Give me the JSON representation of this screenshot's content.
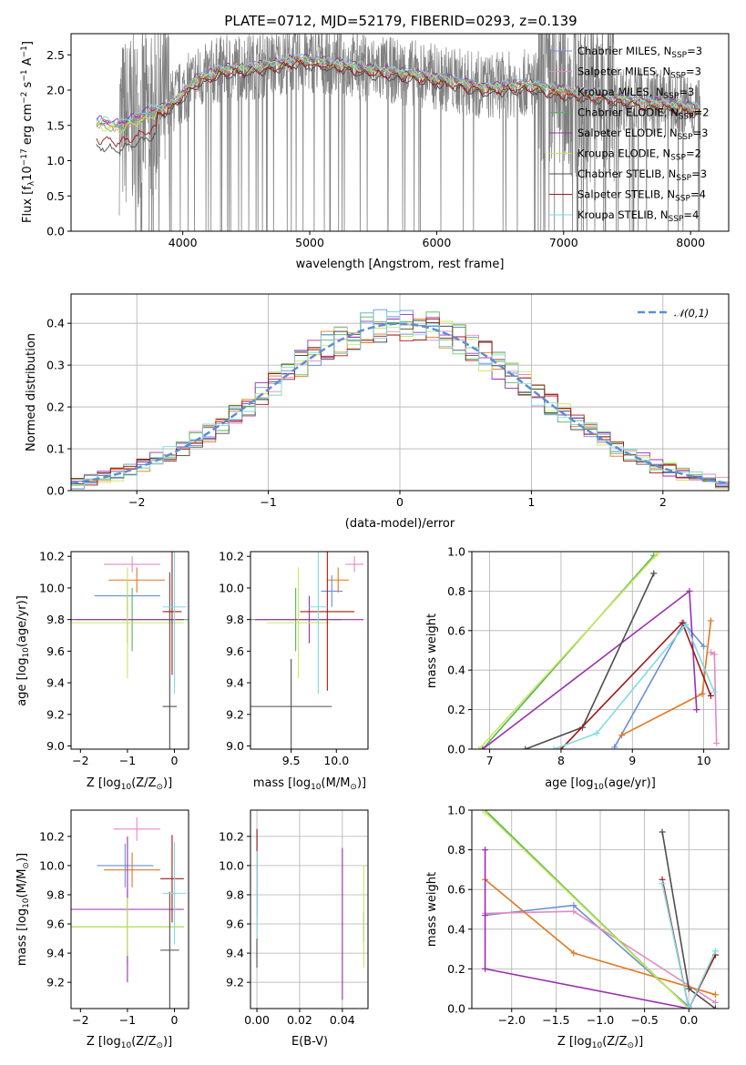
{
  "figure_title": "PLATE=0712, MJD=52179, FIBERID=0293, z=0.139",
  "colors": [
    "#6a8fd8",
    "#e48ac2",
    "#e07820",
    "#56b356",
    "#9b2fae",
    "#c5e85a",
    "#4d4d4d",
    "#a01818",
    "#7fdbe0"
  ],
  "chart_data": [
    {
      "name": "spectrum",
      "type": "line",
      "xlabel": "wavelength [Angstrom, rest frame]",
      "ylabel": "Flux [f_λ10^-17 erg cm^-2 s^-1 A^-1]",
      "xlim": [
        3120,
        8300
      ],
      "ylim": [
        0,
        2.8
      ],
      "xticks": [
        4000,
        5000,
        6000,
        7000,
        8000
      ],
      "yticks": [
        0.0,
        0.5,
        1.0,
        1.5,
        2.0,
        2.5
      ],
      "legend_position": "upper-right",
      "legend": [
        "Chabrier MILES, N_SSP=3",
        "Salpeter MILES, N_SSP=3",
        "Kroupa MILES, N_SSP=3",
        "Chabrier ELODIE, N_SSP=2",
        "Salpeter ELODIE, N_SSP=3",
        "Kroupa ELODIE, N_SSP=2",
        "Chabrier STELIB, N_SSP=3",
        "Salpeter STELIB, N_SSP=4",
        "Kroupa STELIB, N_SSP=4"
      ],
      "continuum_x": [
        3320,
        3500,
        3700,
        3900,
        4100,
        4300,
        4600,
        4900,
        5200,
        5500,
        5800,
        6100,
        6400,
        6700,
        7000,
        7300,
        7600,
        7900,
        8080
      ],
      "continuum_y": [
        1.55,
        1.5,
        1.65,
        1.8,
        2.15,
        2.3,
        2.35,
        2.45,
        2.4,
        2.3,
        2.25,
        2.15,
        2.05,
        2.1,
        2.0,
        1.95,
        1.85,
        1.8,
        1.75
      ]
    },
    {
      "name": "residuals",
      "type": "histogram",
      "xlabel": "(data-model)/error",
      "ylabel": "Normed distribution",
      "xlim": [
        -2.5,
        2.5
      ],
      "ylim": [
        0,
        0.47
      ],
      "xticks": [
        -2,
        -1,
        0,
        1,
        2
      ],
      "yticks": [
        0.0,
        0.1,
        0.2,
        0.3,
        0.4
      ],
      "legend": "𝒩(0,1)",
      "legend_position": "upper-right",
      "bin_width": 0.1
    },
    {
      "name": "age_vs_Z",
      "type": "errorbar",
      "xlabel": "Z [log10(Z/Z⊙)]",
      "ylabel": "age  [log10(age/yr)]",
      "xlim": [
        -2.2,
        0.3
      ],
      "ylim": [
        8.98,
        10.23
      ],
      "xticks": [
        -2,
        -1,
        0
      ],
      "yticks": [
        9.0,
        9.2,
        9.4,
        9.6,
        9.8,
        10.0,
        10.2
      ],
      "points": [
        {
          "x": -1.0,
          "xerr": 0.7,
          "y": 9.95,
          "yerr": 0.1
        },
        {
          "x": -0.9,
          "xerr": 0.6,
          "y": 10.15,
          "yerr": 0.05
        },
        {
          "x": -0.8,
          "xerr": 0.6,
          "y": 10.05,
          "yerr": 0.08
        },
        {
          "x": -0.9,
          "xerr": 1.2,
          "y": 9.8,
          "yerr": 0.2
        },
        {
          "x": -1.0,
          "xerr": 1.2,
          "y": 9.8,
          "yerr": 0.15
        },
        {
          "x": -1.0,
          "xerr": 1.2,
          "y": 9.78,
          "yerr": 0.35
        },
        {
          "x": -0.1,
          "xerr": 0.15,
          "y": 9.25,
          "yerr": 0.85
        },
        {
          "x": -0.05,
          "xerr": 0.2,
          "y": 9.85,
          "yerr": 0.4
        },
        {
          "x": 0.0,
          "xerr": 0.25,
          "y": 9.88,
          "yerr": 0.55
        }
      ]
    },
    {
      "name": "age_vs_mass",
      "type": "errorbar",
      "xlabel": "mass [log10(M/M⊙)]",
      "ylabel": "",
      "xlim": [
        9.05,
        10.35
      ],
      "ylim": [
        8.98,
        10.23
      ],
      "xticks": [
        9.5,
        10.0
      ],
      "yticks": [
        9.0,
        9.2,
        9.4,
        9.6,
        9.8,
        10.0,
        10.2
      ],
      "points": [
        {
          "x": 9.95,
          "xerr": 0.12,
          "y": 9.98,
          "yerr": 0.1
        },
        {
          "x": 10.2,
          "xerr": 0.1,
          "y": 10.15,
          "yerr": 0.05
        },
        {
          "x": 10.02,
          "xerr": 0.12,
          "y": 10.05,
          "yerr": 0.08
        },
        {
          "x": 9.55,
          "xerr": 0.5,
          "y": 9.8,
          "yerr": 0.2
        },
        {
          "x": 9.7,
          "xerr": 0.6,
          "y": 9.8,
          "yerr": 0.15
        },
        {
          "x": 9.58,
          "xerr": 0.35,
          "y": 9.78,
          "yerr": 0.35
        },
        {
          "x": 9.5,
          "xerr": 0.45,
          "y": 9.25,
          "yerr": 0.3
        },
        {
          "x": 9.9,
          "xerr": 0.3,
          "y": 9.85,
          "yerr": 0.5
        },
        {
          "x": 9.8,
          "xerr": 0.1,
          "y": 9.88,
          "yerr": 0.55
        }
      ]
    },
    {
      "name": "mass_weight_vs_age",
      "type": "line",
      "xlabel": "age  [log10(age/yr)]",
      "ylabel": "mass weight",
      "xlim": [
        6.75,
        10.35
      ],
      "ylim": [
        0,
        1
      ],
      "xticks": [
        7,
        8,
        9,
        10
      ],
      "yticks": [
        0.0,
        0.2,
        0.4,
        0.6,
        0.8,
        1.0
      ],
      "series": [
        {
          "x": [
            8.75,
            9.72,
            10.0
          ],
          "y": [
            0.01,
            0.64,
            0.52
          ]
        },
        {
          "x": [
            10.1,
            10.15,
            10.18
          ],
          "y": [
            0.49,
            0.48,
            0.03
          ]
        },
        {
          "x": [
            8.85,
            9.98,
            10.1
          ],
          "y": [
            0.07,
            0.28,
            0.65
          ]
        },
        {
          "x": [
            6.9,
            9.3
          ],
          "y": [
            0.0,
            0.98
          ]
        },
        {
          "x": [
            6.9,
            9.8,
            9.9
          ],
          "y": [
            0.0,
            0.8,
            0.2
          ]
        },
        {
          "x": [
            6.85,
            9.35
          ],
          "y": [
            0.0,
            0.99
          ]
        },
        {
          "x": [
            7.5,
            8.3,
            9.3
          ],
          "y": [
            0.0,
            0.11,
            0.89
          ]
        },
        {
          "x": [
            8.0,
            9.7,
            10.1
          ],
          "y": [
            0.0,
            0.64,
            0.27
          ]
        },
        {
          "x": [
            7.9,
            8.5,
            9.75,
            10.15
          ],
          "y": [
            0.0,
            0.08,
            0.63,
            0.29
          ]
        }
      ]
    },
    {
      "name": "mass_vs_Z",
      "type": "errorbar",
      "xlabel": "Z [log10(Z/Z⊙)]",
      "ylabel": "mass [log10(M/M⊙)]",
      "xlim": [
        -2.2,
        0.3
      ],
      "ylim": [
        9.02,
        10.38
      ],
      "xticks": [
        -2,
        -1,
        0
      ],
      "yticks": [
        9.2,
        9.4,
        9.6,
        9.8,
        10.0,
        10.2
      ],
      "points": [
        {
          "x": -1.05,
          "xerr": 0.6,
          "y": 10.0,
          "yerr": 0.15
        },
        {
          "x": -0.8,
          "xerr": 0.5,
          "y": 10.25,
          "yerr": 0.08
        },
        {
          "x": -0.9,
          "xerr": 0.6,
          "y": 9.97,
          "yerr": 0.12
        },
        {
          "x": -1.0,
          "xerr": 1.2,
          "y": 9.58,
          "yerr": 0.25
        },
        {
          "x": -1.0,
          "xerr": 1.2,
          "y": 9.7,
          "yerr": 0.5
        },
        {
          "x": -1.0,
          "xerr": 1.2,
          "y": 9.58,
          "yerr": 0.2
        },
        {
          "x": -0.1,
          "xerr": 0.2,
          "y": 9.42,
          "yerr": 0.4
        },
        {
          "x": -0.05,
          "xerr": 0.25,
          "y": 9.91,
          "yerr": 0.3
        },
        {
          "x": 0.0,
          "xerr": 0.25,
          "y": 9.81,
          "yerr": 0.35
        }
      ]
    },
    {
      "name": "mass_vs_EBV",
      "type": "errorbar",
      "xlabel": "E(B-V)",
      "ylabel": "",
      "xlim": [
        -0.003,
        0.052
      ],
      "ylim": [
        9.02,
        10.38
      ],
      "xticks": [
        0.0,
        0.02,
        0.04
      ],
      "yticks": [
        9.2,
        9.4,
        9.6,
        9.8,
        10.0,
        10.2
      ],
      "points": [
        {
          "x": 0.0,
          "y": 9.9,
          "yerr": 0.35
        },
        {
          "x": 0.0,
          "y": 10.0,
          "yerr": 0.25
        },
        {
          "x": 0.0,
          "y": 9.95,
          "yerr": 0.3
        },
        {
          "x": 0.05,
          "y": 9.58,
          "yerr": 0.1
        },
        {
          "x": 0.04,
          "y": 9.6,
          "yerr": 0.52
        },
        {
          "x": 0.05,
          "y": 9.65,
          "yerr": 0.35
        },
        {
          "x": 0.0,
          "y": 9.7,
          "yerr": 0.4
        },
        {
          "x": 0.0,
          "y": 9.95,
          "yerr": 0.3
        },
        {
          "x": 0.0,
          "y": 9.8,
          "yerr": 0.3
        }
      ]
    },
    {
      "name": "mass_weight_vs_Z",
      "type": "line",
      "xlabel": "Z [log10(Z/Z⊙)]",
      "ylabel": "mass weight",
      "xlim": [
        -2.45,
        0.45
      ],
      "ylim": [
        0,
        1
      ],
      "xticks": [
        -2.0,
        -1.5,
        -1.0,
        -0.5,
        0.0
      ],
      "yticks": [
        0.0,
        0.2,
        0.4,
        0.6,
        0.8,
        1.0
      ],
      "series": [
        {
          "x": [
            -2.3,
            -1.3,
            0.0
          ],
          "y": [
            0.47,
            0.52,
            0.01
          ]
        },
        {
          "x": [
            -2.3,
            -1.3,
            0.3
          ],
          "y": [
            0.48,
            0.49,
            0.03
          ]
        },
        {
          "x": [
            -2.3,
            -1.3,
            0.3
          ],
          "y": [
            0.65,
            0.28,
            0.07
          ]
        },
        {
          "x": [
            -2.3,
            0.0
          ],
          "y": [
            1.0,
            0.0
          ]
        },
        {
          "x": [
            -2.3,
            -2.3,
            -2.3,
            0.0
          ],
          "y": [
            0.8,
            0.47,
            0.2,
            0.0
          ]
        },
        {
          "x": [
            -2.3,
            0.0
          ],
          "y": [
            0.99,
            0.0
          ]
        },
        {
          "x": [
            -0.3,
            0.0,
            0.3
          ],
          "y": [
            0.89,
            0.1,
            0.0
          ]
        },
        {
          "x": [
            -0.3,
            0.0,
            0.3
          ],
          "y": [
            0.65,
            0.0,
            0.27
          ]
        },
        {
          "x": [
            -0.3,
            0.0,
            0.3
          ],
          "y": [
            0.63,
            0.0,
            0.29
          ]
        }
      ]
    }
  ]
}
